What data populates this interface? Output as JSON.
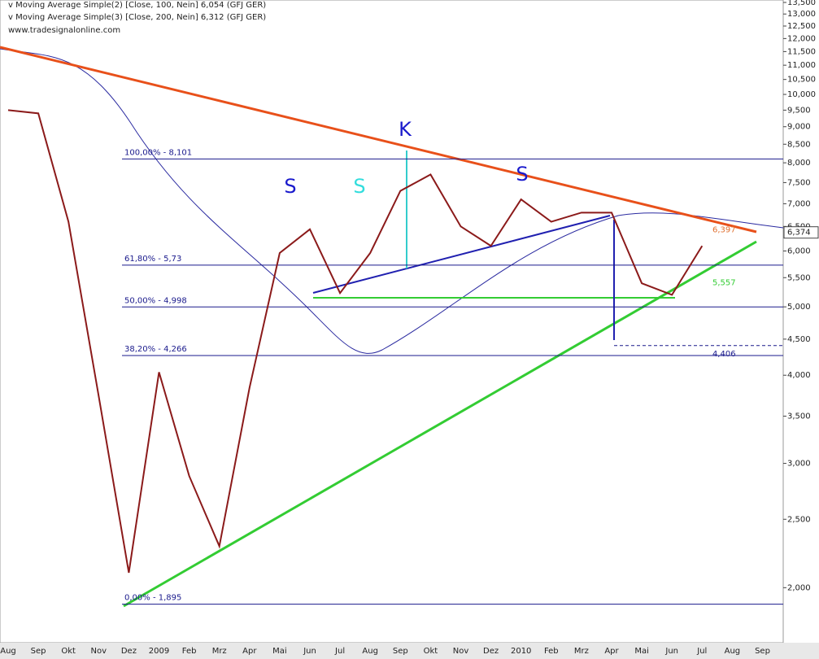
{
  "chart_data": {
    "type": "line",
    "header_lines": [
      "v Moving Average Simple(2) [Close, 100, Nein] 6,054 (GFJ GER)",
      "v Moving Average Simple(3) [Close, 200, Nein] 6,312 (GFJ GER)",
      "www.tradesignalonline.com"
    ],
    "categories": [
      "Aug",
      "Sep",
      "Okt",
      "Nov",
      "Dez",
      "2009",
      "Feb",
      "Mrz",
      "Apr",
      "Mai",
      "Jun",
      "Jul",
      "Aug",
      "Sep",
      "Okt",
      "Nov",
      "Dez",
      "2010",
      "Feb",
      "Mrz",
      "Apr",
      "Mai",
      "Jun",
      "Jul",
      "Aug",
      "Sep"
    ],
    "values": [
      9.5,
      9.4,
      6.6,
      3.74,
      2.1,
      4.04,
      2.88,
      2.29,
      3.84,
      5.96,
      6.44,
      5.23,
      5.96,
      7.3,
      7.7,
      6.5,
      6.1,
      7.1,
      6.6,
      6.8,
      6.8,
      5.4,
      5.2,
      6.1,
      null,
      null
    ],
    "color": "#8b1a1a",
    "log_scale": true,
    "ylim": [
      1.68,
      13.5
    ],
    "yticks": [
      {
        "value": 2,
        "label": "2,000"
      },
      {
        "value": 2.5,
        "label": "2,500"
      },
      {
        "value": 3,
        "label": "3,000"
      },
      {
        "value": 3.5,
        "label": "3,500"
      },
      {
        "value": 4,
        "label": "4,000"
      },
      {
        "value": 4.5,
        "label": "4,500"
      },
      {
        "value": 5,
        "label": "5,000"
      },
      {
        "value": 5.5,
        "label": "5,500"
      },
      {
        "value": 6,
        "label": "6,000"
      },
      {
        "value": 6.5,
        "label": "6,500"
      },
      {
        "value": 7,
        "label": "7,000"
      },
      {
        "value": 7.5,
        "label": "7,500"
      },
      {
        "value": 8,
        "label": "8,000"
      },
      {
        "value": 8.5,
        "label": "8,500"
      },
      {
        "value": 9,
        "label": "9,000"
      },
      {
        "value": 9.5,
        "label": "9,500"
      },
      {
        "value": 10,
        "label": "10,000"
      },
      {
        "value": 10.5,
        "label": "10,500"
      },
      {
        "value": 11,
        "label": "11,000"
      },
      {
        "value": 11.5,
        "label": "11,500"
      },
      {
        "value": 12,
        "label": "12,000"
      },
      {
        "value": 12.5,
        "label": "12,500"
      },
      {
        "value": 13,
        "label": "13,000"
      },
      {
        "value": 13.5,
        "label": "13,500"
      }
    ],
    "levels": [
      {
        "value": 8.101,
        "label": "100,00% - 8,101"
      },
      {
        "value": 5.73,
        "label": "61,80% - 5,73"
      },
      {
        "value": 4.998,
        "label": "50,00% - 4,998"
      },
      {
        "value": 4.266,
        "label": "38,20% - 4,266"
      },
      {
        "value": 1.895,
        "label": "0,00% - 1,895"
      }
    ],
    "level_color": "#1a1a8c",
    "markers": [
      {
        "value": 6.397,
        "label": "6,397",
        "color": "#e07030"
      },
      {
        "value": 5.557,
        "label": "5,557",
        "color": "#33cc33"
      },
      {
        "value": 4.406,
        "label": "4,406",
        "color": "#1a1a8c"
      }
    ],
    "last_price": {
      "value": 6.374,
      "label": "6,374"
    },
    "pattern_labels": [
      "S",
      "S",
      "K",
      "S"
    ]
  }
}
